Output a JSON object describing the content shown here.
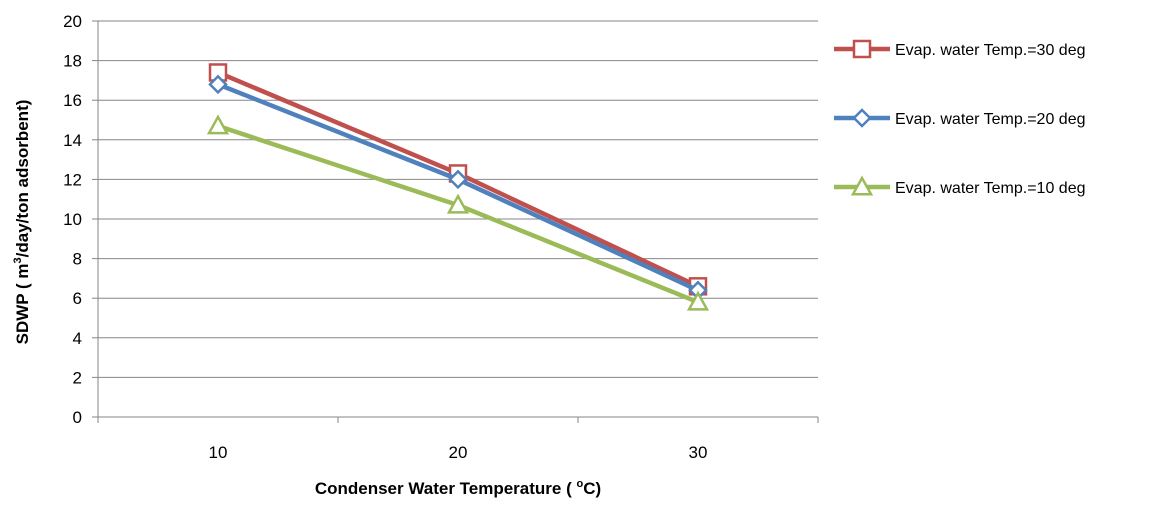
{
  "chart_data": {
    "type": "line",
    "title": "",
    "xlabel": "Condenser Water Temperature ( oC)",
    "xlabel_parts": {
      "before": "Condenser Water Temperature ( ",
      "sup": "o",
      "after": "C)"
    },
    "ylabel": "SDWP ( m3/day/ton adsorbent)",
    "ylabel_parts": {
      "before": "SDWP ( m",
      "sup": "3",
      "after": "/day/ton adsorbent)"
    },
    "categories": [
      "10",
      "20",
      "30"
    ],
    "ylim": [
      0,
      20
    ],
    "ytick_step": 2,
    "yticks": [
      "0",
      "2",
      "4",
      "6",
      "8",
      "10",
      "12",
      "14",
      "16",
      "18",
      "20"
    ],
    "grid": true,
    "legend_position": "right",
    "series": [
      {
        "name": "Evap. water Temp.=30 deg",
        "values": [
          17.4,
          12.3,
          6.6
        ],
        "color": "#C0504D",
        "marker": "square"
      },
      {
        "name": "Evap. water Temp.=20 deg",
        "values": [
          16.8,
          12.0,
          6.4
        ],
        "color": "#4F81BD",
        "marker": "diamond"
      },
      {
        "name": "Evap. water Temp.=10 deg",
        "values": [
          14.7,
          10.7,
          5.8
        ],
        "color": "#9BBB59",
        "marker": "triangle"
      }
    ]
  }
}
